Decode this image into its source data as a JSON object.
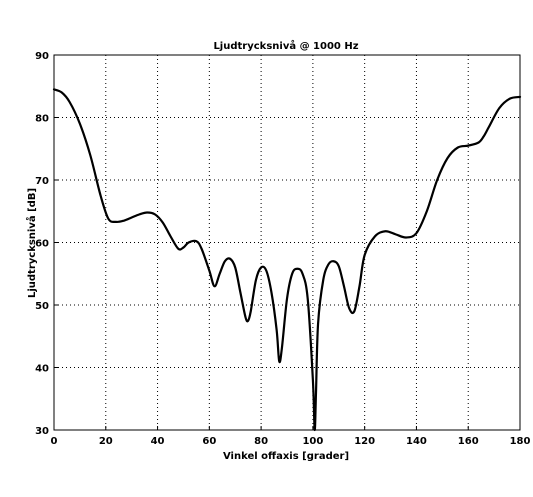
{
  "chart_data": {
    "type": "line",
    "title": "Ljudtrycksnivå @ 1000 Hz",
    "xlabel": "Vinkel offaxis [grader]",
    "ylabel": "Ljudtrycksnivå [dB]",
    "xlim": [
      0,
      180
    ],
    "ylim": [
      30,
      90
    ],
    "xticks": [
      0,
      20,
      40,
      60,
      80,
      100,
      120,
      140,
      160,
      180
    ],
    "yticks": [
      30,
      40,
      50,
      60,
      70,
      80,
      90
    ],
    "grid": true,
    "grid_style": "dotted",
    "legend": "none",
    "line_color": "#000000",
    "series": [
      {
        "x": [
          0,
          3,
          6,
          10,
          14,
          18,
          21,
          24,
          27,
          30,
          33,
          36,
          39,
          42,
          45,
          48,
          50,
          52,
          55,
          57,
          60,
          62,
          64,
          66,
          68,
          70,
          72,
          74,
          75,
          76,
          78,
          80,
          82,
          84,
          86,
          87,
          88,
          90,
          92,
          94,
          96,
          98,
          100,
          100.7,
          101.2,
          102,
          104,
          106,
          108,
          110,
          112,
          114,
          116,
          118,
          120,
          124,
          128,
          132,
          136,
          140,
          144,
          148,
          152,
          156,
          160,
          164,
          166,
          168,
          172,
          176,
          180
        ],
        "y": [
          84.5,
          84.0,
          82.5,
          79.0,
          74.0,
          67.5,
          63.8,
          63.3,
          63.5,
          64.0,
          64.5,
          64.8,
          64.5,
          63.2,
          61.0,
          59.0,
          59.2,
          60.0,
          60.2,
          59.0,
          55.5,
          53.0,
          55.0,
          57.0,
          57.4,
          56.0,
          52.0,
          48.0,
          47.5,
          49.0,
          54.0,
          56.0,
          55.5,
          52.0,
          46.0,
          41.0,
          43.0,
          51.0,
          55.0,
          55.8,
          55.0,
          51.0,
          38.0,
          30.0,
          36.0,
          47.0,
          54.0,
          56.5,
          57.0,
          56.2,
          53.0,
          49.5,
          49.0,
          53.0,
          58.0,
          61.0,
          61.8,
          61.3,
          60.8,
          61.5,
          65.0,
          70.0,
          73.5,
          75.2,
          75.5,
          76.0,
          77.0,
          78.5,
          81.5,
          83.0,
          83.3
        ]
      }
    ]
  }
}
